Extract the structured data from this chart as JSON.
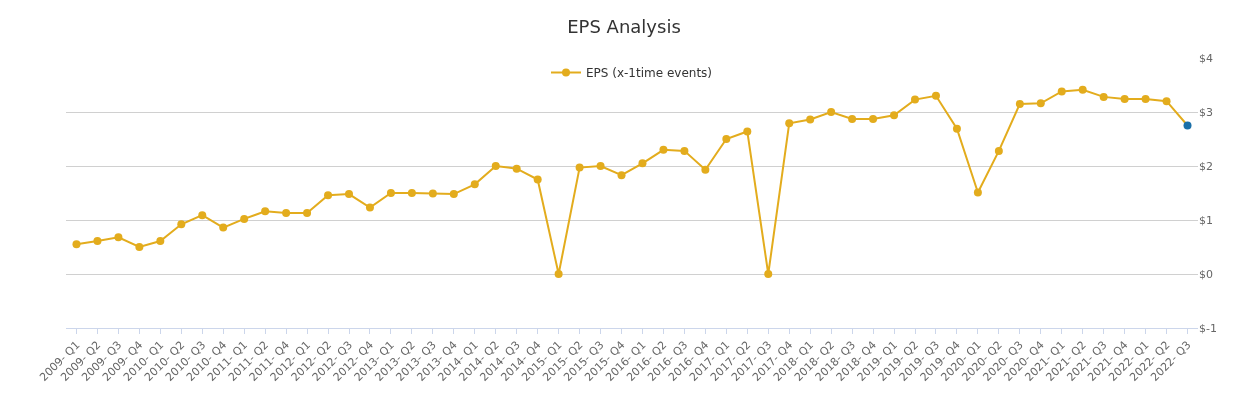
{
  "chart_data": {
    "type": "line",
    "title": "EPS Analysis",
    "categories": [
      "2009- Q1",
      "2009- Q2",
      "2009- Q3",
      "2009- Q4",
      "2010- Q1",
      "2010- Q2",
      "2010- Q3",
      "2010- Q4",
      "2011- Q1",
      "2011- Q2",
      "2011- Q4",
      "2012- Q1",
      "2012- Q2",
      "2012- Q3",
      "2012- Q4",
      "2013- Q1",
      "2013- Q2",
      "2013- Q3",
      "2013- Q4",
      "2014- Q1",
      "2014- Q2",
      "2014- Q3",
      "2014- Q4",
      "2015- Q1",
      "2015- Q2",
      "2015- Q3",
      "2015- Q4",
      "2016- Q1",
      "2016- Q2",
      "2016- Q3",
      "2016- Q4",
      "2017- Q1",
      "2017- Q2",
      "2017- Q3",
      "2017- Q4",
      "2018- Q1",
      "2018- Q2",
      "2018- Q3",
      "2018- Q4",
      "2019- Q1",
      "2019- Q2",
      "2019- Q3",
      "2019- Q4",
      "2020- Q1",
      "2020- Q2",
      "2020- Q3",
      "2020- Q4",
      "2021- Q1",
      "2021- Q2",
      "2021- Q3",
      "2021- Q4",
      "2022- Q1",
      "2022- Q2",
      "2022- Q3"
    ],
    "series": [
      {
        "name": "EPS (x-1time events)",
        "color": "#e3ac1d",
        "colors": [
          "#e3ac1d",
          "#e3ac1d",
          "#e3ac1d",
          "#e3ac1d",
          "#e3ac1d",
          "#e3ac1d",
          "#e3ac1d",
          "#e3ac1d",
          "#e3ac1d",
          "#e3ac1d",
          "#e3ac1d",
          "#e3ac1d",
          "#e3ac1d",
          "#e3ac1d",
          "#e3ac1d",
          "#e3ac1d",
          "#e3ac1d",
          "#e3ac1d",
          "#e3ac1d",
          "#e3ac1d",
          "#e3ac1d",
          "#e3ac1d",
          "#e3ac1d",
          "#e3ac1d",
          "#e3ac1d",
          "#e3ac1d",
          "#e3ac1d",
          "#e3ac1d",
          "#e3ac1d",
          "#e3ac1d",
          "#e3ac1d",
          "#e3ac1d",
          "#e3ac1d",
          "#e3ac1d",
          "#e3ac1d",
          "#e3ac1d",
          "#e3ac1d",
          "#e3ac1d",
          "#e3ac1d",
          "#e3ac1d",
          "#e3ac1d",
          "#e3ac1d",
          "#e3ac1d",
          "#e3ac1d",
          "#e3ac1d",
          "#e3ac1d",
          "#e3ac1d",
          "#e3ac1d",
          "#e3ac1d",
          "#e3ac1d",
          "#e3ac1d",
          "#e3ac1d",
          "#e3ac1d",
          "#1a6fa8"
        ],
        "values": [
          0.55,
          0.61,
          0.68,
          0.5,
          0.61,
          0.92,
          1.09,
          0.86,
          1.02,
          1.16,
          1.13,
          1.13,
          1.46,
          1.48,
          1.23,
          1.5,
          1.5,
          1.49,
          1.48,
          1.66,
          2.0,
          1.95,
          1.75,
          0.0,
          1.97,
          2.0,
          1.83,
          2.05,
          2.3,
          2.28,
          1.93,
          2.5,
          2.64,
          0.0,
          2.79,
          2.86,
          3.0,
          2.87,
          2.87,
          2.94,
          3.23,
          3.3,
          2.69,
          1.51,
          2.28,
          3.15,
          3.16,
          3.38,
          3.41,
          3.28,
          3.24,
          3.24,
          3.2,
          2.75
        ]
      }
    ],
    "ylim": [
      -1,
      4
    ],
    "yticks": [
      {
        "value": -1,
        "label": "$-1"
      },
      {
        "value": 0,
        "label": "$0"
      },
      {
        "value": 1,
        "label": "$1"
      },
      {
        "value": 2,
        "label": "$2"
      },
      {
        "value": 3,
        "label": "$3"
      },
      {
        "value": 4,
        "label": "$4"
      }
    ],
    "grid": "y",
    "legend": "top",
    "marker": "circle",
    "line_style": "solid"
  }
}
